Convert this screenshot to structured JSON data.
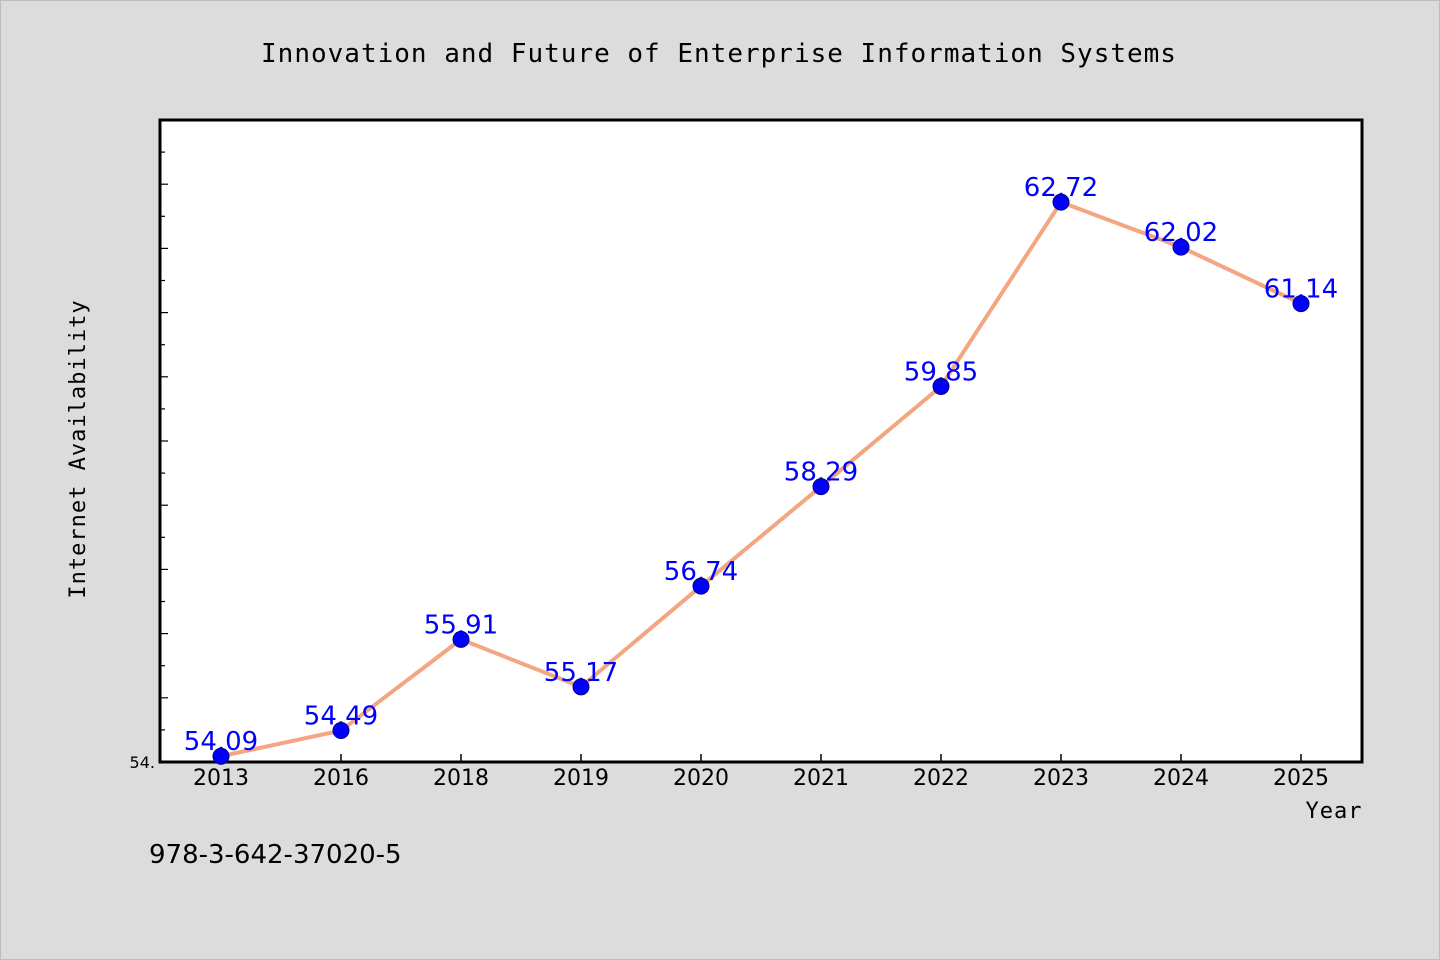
{
  "chart_data": {
    "type": "line",
    "title": "Innovation and Future of Enterprise Information Systems",
    "xlabel": "Year",
    "ylabel": "Internet Availability",
    "categories": [
      "2013",
      "2016",
      "2018",
      "2019",
      "2020",
      "2021",
      "2022",
      "2023",
      "2024",
      "2025"
    ],
    "series": [
      {
        "values": [
          54.09,
          54.49,
          55.91,
          55.17,
          56.74,
          58.29,
          59.85,
          62.72,
          62.02,
          61.14
        ]
      }
    ],
    "data_labels": [
      "54.09",
      "54.49",
      "55.91",
      "55.17",
      "56.74",
      "58.29",
      "59.85",
      "62.72",
      "62.02",
      "61.14"
    ],
    "y_tick_label": "54.",
    "ylim": [
      54.0,
      64.0
    ],
    "grid": false,
    "legend": "none",
    "colors": {
      "line": "#f4a582",
      "marker": "#0000ff",
      "data_label": "#0000ff",
      "plot_background": "#ffffff",
      "figure_background": "#dcdcdc"
    }
  },
  "footer": {
    "isbn": "978-3-642-37020-5"
  }
}
